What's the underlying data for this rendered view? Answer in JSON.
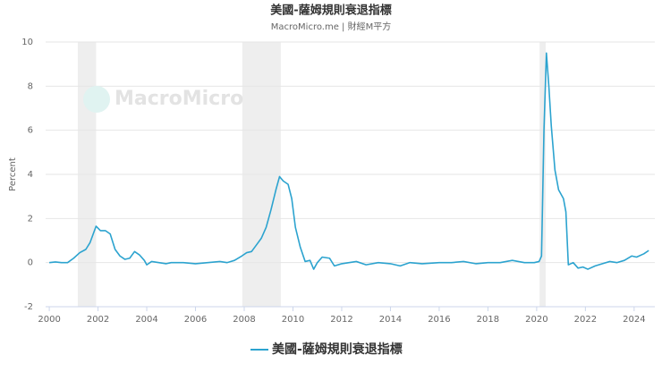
{
  "chart_data": {
    "type": "line",
    "title": "美國-薩姆規則衰退指標",
    "subtitle": "MacroMicro.me | 財經M平方",
    "watermark": "MacroMicro",
    "y_label": "Percent",
    "xlim": [
      1999.85,
      2024.85
    ],
    "xticks": [
      2000,
      2002,
      2004,
      2006,
      2008,
      2010,
      2012,
      2014,
      2016,
      2018,
      2020,
      2022,
      2024
    ],
    "ylim": [
      -2,
      10
    ],
    "yticks": [
      -2,
      0,
      2,
      4,
      6,
      8,
      10
    ],
    "grid": true,
    "recessions": [
      [
        2001.17,
        2001.92
      ],
      [
        2007.92,
        2009.5
      ],
      [
        2020.12,
        2020.37
      ]
    ],
    "recession_color": "#eeeeee",
    "x": [
      2000.0,
      2000.25,
      2000.5,
      2000.75,
      2001.0,
      2001.25,
      2001.5,
      2001.67,
      2001.92,
      2002.1,
      2002.3,
      2002.5,
      2002.7,
      2002.9,
      2003.1,
      2003.3,
      2003.5,
      2003.7,
      2003.9,
      2004.0,
      2004.2,
      2004.5,
      2004.8,
      2005.0,
      2005.5,
      2006.0,
      2006.5,
      2007.0,
      2007.3,
      2007.6,
      2007.9,
      2008.1,
      2008.3,
      2008.5,
      2008.7,
      2008.9,
      2009.1,
      2009.3,
      2009.45,
      2009.6,
      2009.8,
      2009.95,
      2010.1,
      2010.3,
      2010.5,
      2010.7,
      2010.85,
      2011.0,
      2011.2,
      2011.5,
      2011.7,
      2012.0,
      2012.3,
      2012.6,
      2013.0,
      2013.5,
      2014.0,
      2014.4,
      2014.8,
      2015.3,
      2016.0,
      2016.5,
      2017.0,
      2017.5,
      2018.0,
      2018.5,
      2019.0,
      2019.5,
      2019.9,
      2020.1,
      2020.2,
      2020.3,
      2020.4,
      2020.5,
      2020.6,
      2020.75,
      2020.9,
      2021.1,
      2021.2,
      2021.3,
      2021.5,
      2021.7,
      2021.9,
      2022.1,
      2022.4,
      2022.7,
      2023.0,
      2023.3,
      2023.6,
      2023.9,
      2024.1,
      2024.4,
      2024.6
    ],
    "series": [
      {
        "name": "美國-薩姆規則衰退指標",
        "color": "#2ca3cf",
        "values": [
          0.0,
          0.03,
          0.0,
          0.0,
          0.2,
          0.45,
          0.6,
          0.9,
          1.65,
          1.45,
          1.45,
          1.3,
          0.6,
          0.3,
          0.15,
          0.2,
          0.5,
          0.35,
          0.1,
          -0.1,
          0.05,
          0.0,
          -0.05,
          0.0,
          0.0,
          -0.05,
          0.0,
          0.05,
          0.0,
          0.1,
          0.3,
          0.45,
          0.5,
          0.8,
          1.1,
          1.6,
          2.4,
          3.3,
          3.9,
          3.7,
          3.55,
          2.9,
          1.6,
          0.7,
          0.05,
          0.1,
          -0.3,
          0.0,
          0.25,
          0.2,
          -0.15,
          -0.05,
          0.0,
          0.05,
          -0.1,
          0.0,
          -0.05,
          -0.15,
          0.0,
          -0.05,
          0.0,
          0.0,
          0.05,
          -0.05,
          0.0,
          0.0,
          0.1,
          0.0,
          0.0,
          0.05,
          0.3,
          6.0,
          9.5,
          8.0,
          6.2,
          4.2,
          3.3,
          2.9,
          2.3,
          -0.1,
          0.0,
          -0.25,
          -0.2,
          -0.3,
          -0.15,
          -0.05,
          0.05,
          0.0,
          0.1,
          0.3,
          0.25,
          0.4,
          0.55
        ]
      }
    ]
  }
}
